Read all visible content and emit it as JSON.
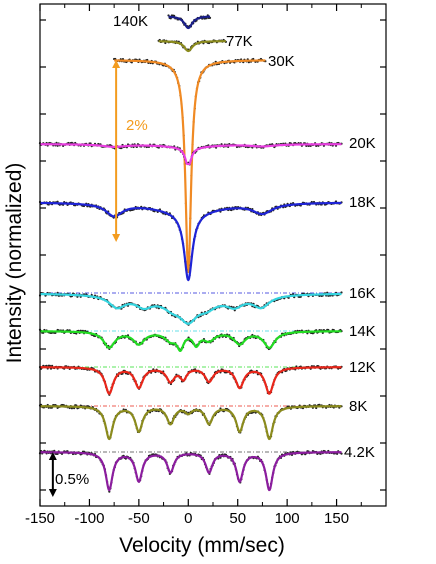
{
  "chart_data": {
    "type": "line",
    "xlabel": "Velocity (mm/sec)",
    "ylabel": "Intensity (normalized)",
    "xlim": [
      -150,
      200
    ],
    "xticks": [
      -150,
      -100,
      -50,
      0,
      50,
      100,
      150
    ],
    "xtick_labels": [
      "-150",
      "-100",
      "-50",
      "0",
      "50",
      "100",
      "150"
    ],
    "grid": false,
    "scale_bars": [
      {
        "label": "2%",
        "color": "#f39c1f",
        "span_fraction": 2.0,
        "x": -73
      },
      {
        "label": "0.5%",
        "color": "#000000",
        "span_fraction": 0.5,
        "x": -137
      }
    ],
    "spectra": [
      {
        "name": "140K",
        "color": "#1b1f8a",
        "x_range": [
          -20,
          22
        ],
        "baseline_offset": 0.0,
        "label_x": -70
      },
      {
        "name": "77K",
        "color": "#8b8b1d",
        "x_range": [
          -30,
          38
        ],
        "baseline_offset": -2.0,
        "label_x": 38
      },
      {
        "name": "30K",
        "color": "#f08a24",
        "x_range": [
          -75,
          78
        ],
        "baseline_offset": -4.5,
        "label_x": 80
      },
      {
        "name": "20K",
        "color": "#e83fe0",
        "x_range": [
          -150,
          155
        ],
        "baseline_offset": -10.5,
        "label_x": 160
      },
      {
        "name": "18K",
        "color": "#1f24d6",
        "x_range": [
          -150,
          155
        ],
        "baseline_offset": -17.0,
        "label_x": 160
      },
      {
        "name": "16K",
        "color": "#35d5e0",
        "x_range": [
          -150,
          155
        ],
        "baseline_offset": -27.0,
        "label_x": 160
      },
      {
        "name": "14K",
        "color": "#22dc22",
        "x_range": [
          -150,
          155
        ],
        "baseline_offset": -31.0,
        "label_x": 160
      },
      {
        "name": "12K",
        "color": "#e8261a",
        "x_range": [
          -150,
          155
        ],
        "baseline_offset": -35.0,
        "label_x": 160
      },
      {
        "name": "8K",
        "color": "#8b8b1d",
        "x_range": [
          -150,
          155
        ],
        "baseline_offset": -39.0,
        "label_x": 160
      },
      {
        "name": "4.2K",
        "color": "#8b1d9e",
        "x_range": [
          -150,
          155
        ],
        "baseline_offset": -43.0,
        "label_x": 160
      }
    ]
  }
}
